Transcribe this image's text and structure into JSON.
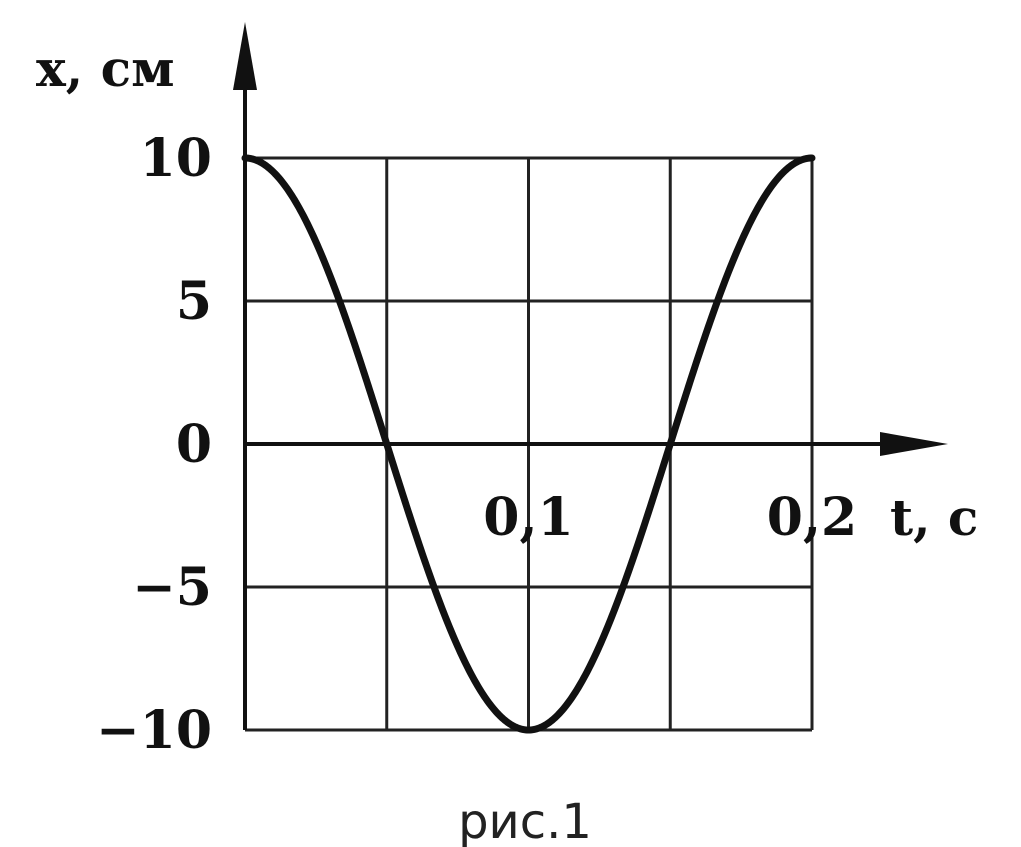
{
  "chart_data": {
    "type": "line",
    "xlabel": "t, с",
    "ylabel": "x, см",
    "xlim": [
      0,
      0.2
    ],
    "ylim": [
      -10,
      10
    ],
    "grid": true,
    "x_ticks": [
      {
        "value": 0.1,
        "label": "0,1"
      },
      {
        "value": 0.2,
        "label": "0,2"
      }
    ],
    "y_ticks": [
      {
        "value": 10,
        "label": "10"
      },
      {
        "value": 5,
        "label": "5"
      },
      {
        "value": 0,
        "label": "0"
      },
      {
        "value": -5,
        "label": "−5"
      },
      {
        "value": -10,
        "label": "−10"
      }
    ],
    "series": [
      {
        "x": [
          0,
          0.01,
          0.02,
          0.03,
          0.04,
          0.05,
          0.06,
          0.07,
          0.08,
          0.09,
          0.1,
          0.11,
          0.12,
          0.13,
          0.14,
          0.15,
          0.16,
          0.17,
          0.18,
          0.19,
          0.2
        ],
        "y": [
          10,
          9.5,
          8.1,
          5.9,
          3.1,
          0,
          -3.1,
          -5.9,
          -8.1,
          -9.5,
          -10,
          -9.5,
          -8.1,
          -5.9,
          -3.1,
          0,
          3.1,
          5.9,
          8.1,
          9.5,
          10
        ]
      }
    ]
  },
  "caption": "рис.1",
  "colors": {
    "ink": "#111111",
    "grid": "#222222",
    "background": "#ffffff"
  }
}
